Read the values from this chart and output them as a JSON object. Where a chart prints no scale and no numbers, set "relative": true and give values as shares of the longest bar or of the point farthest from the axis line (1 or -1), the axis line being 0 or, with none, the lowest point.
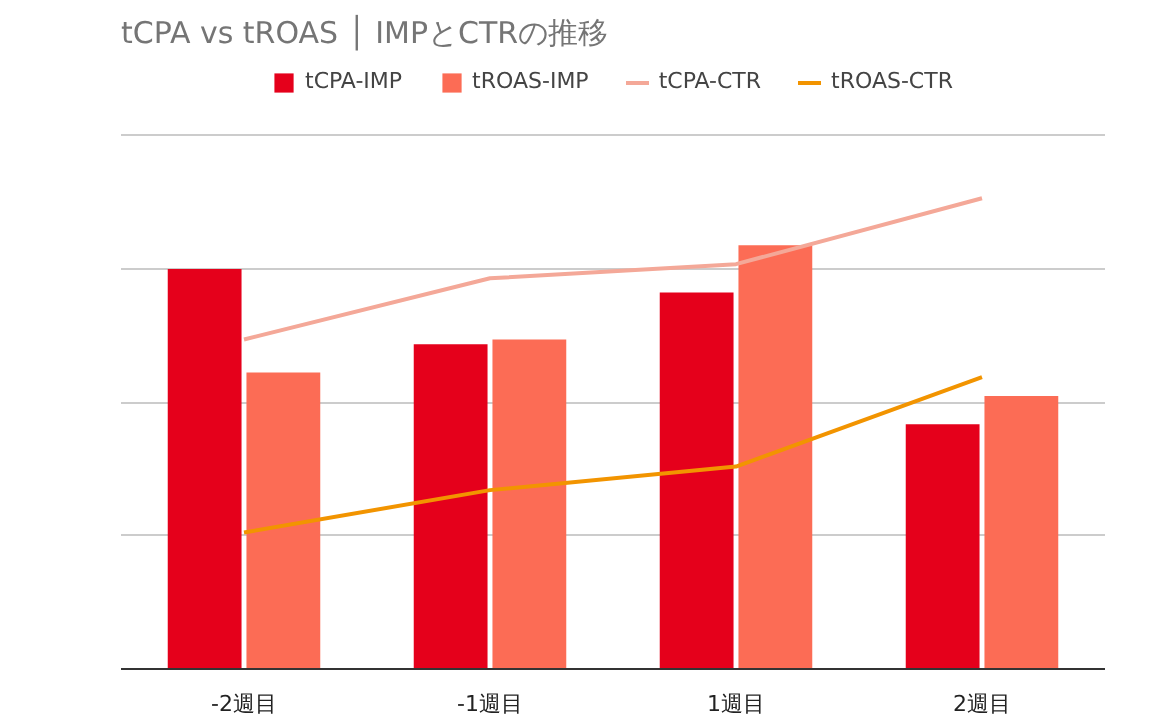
{
  "chart_data": {
    "type": "bar",
    "title": "tCPA vs tROAS │ IMPとCTRの推移",
    "categories": [
      "-2週目",
      "-1週目",
      "1週目",
      "2週目"
    ],
    "relative": true,
    "grid": true,
    "legend": "top",
    "series": [
      {
        "name": "tCPA-IMP",
        "color": "#e5001b",
        "values": [
          0.85,
          0.69,
          0.8,
          0.52
        ]
      },
      {
        "name": "tROAS-IMP",
        "color": "#fc6c55",
        "values": [
          0.63,
          0.7,
          0.9,
          0.58
        ]
      },
      {
        "name": "tCPA-CTR",
        "type": "line",
        "color": "#f4a898",
        "values": [
          0.7,
          0.83,
          0.86,
          1
        ]
      },
      {
        "name": "tROAS-CTR",
        "type": "line",
        "color": "#f29400",
        "values": [
          0.29,
          0.38,
          0.43,
          0.62
        ]
      }
    ]
  }
}
